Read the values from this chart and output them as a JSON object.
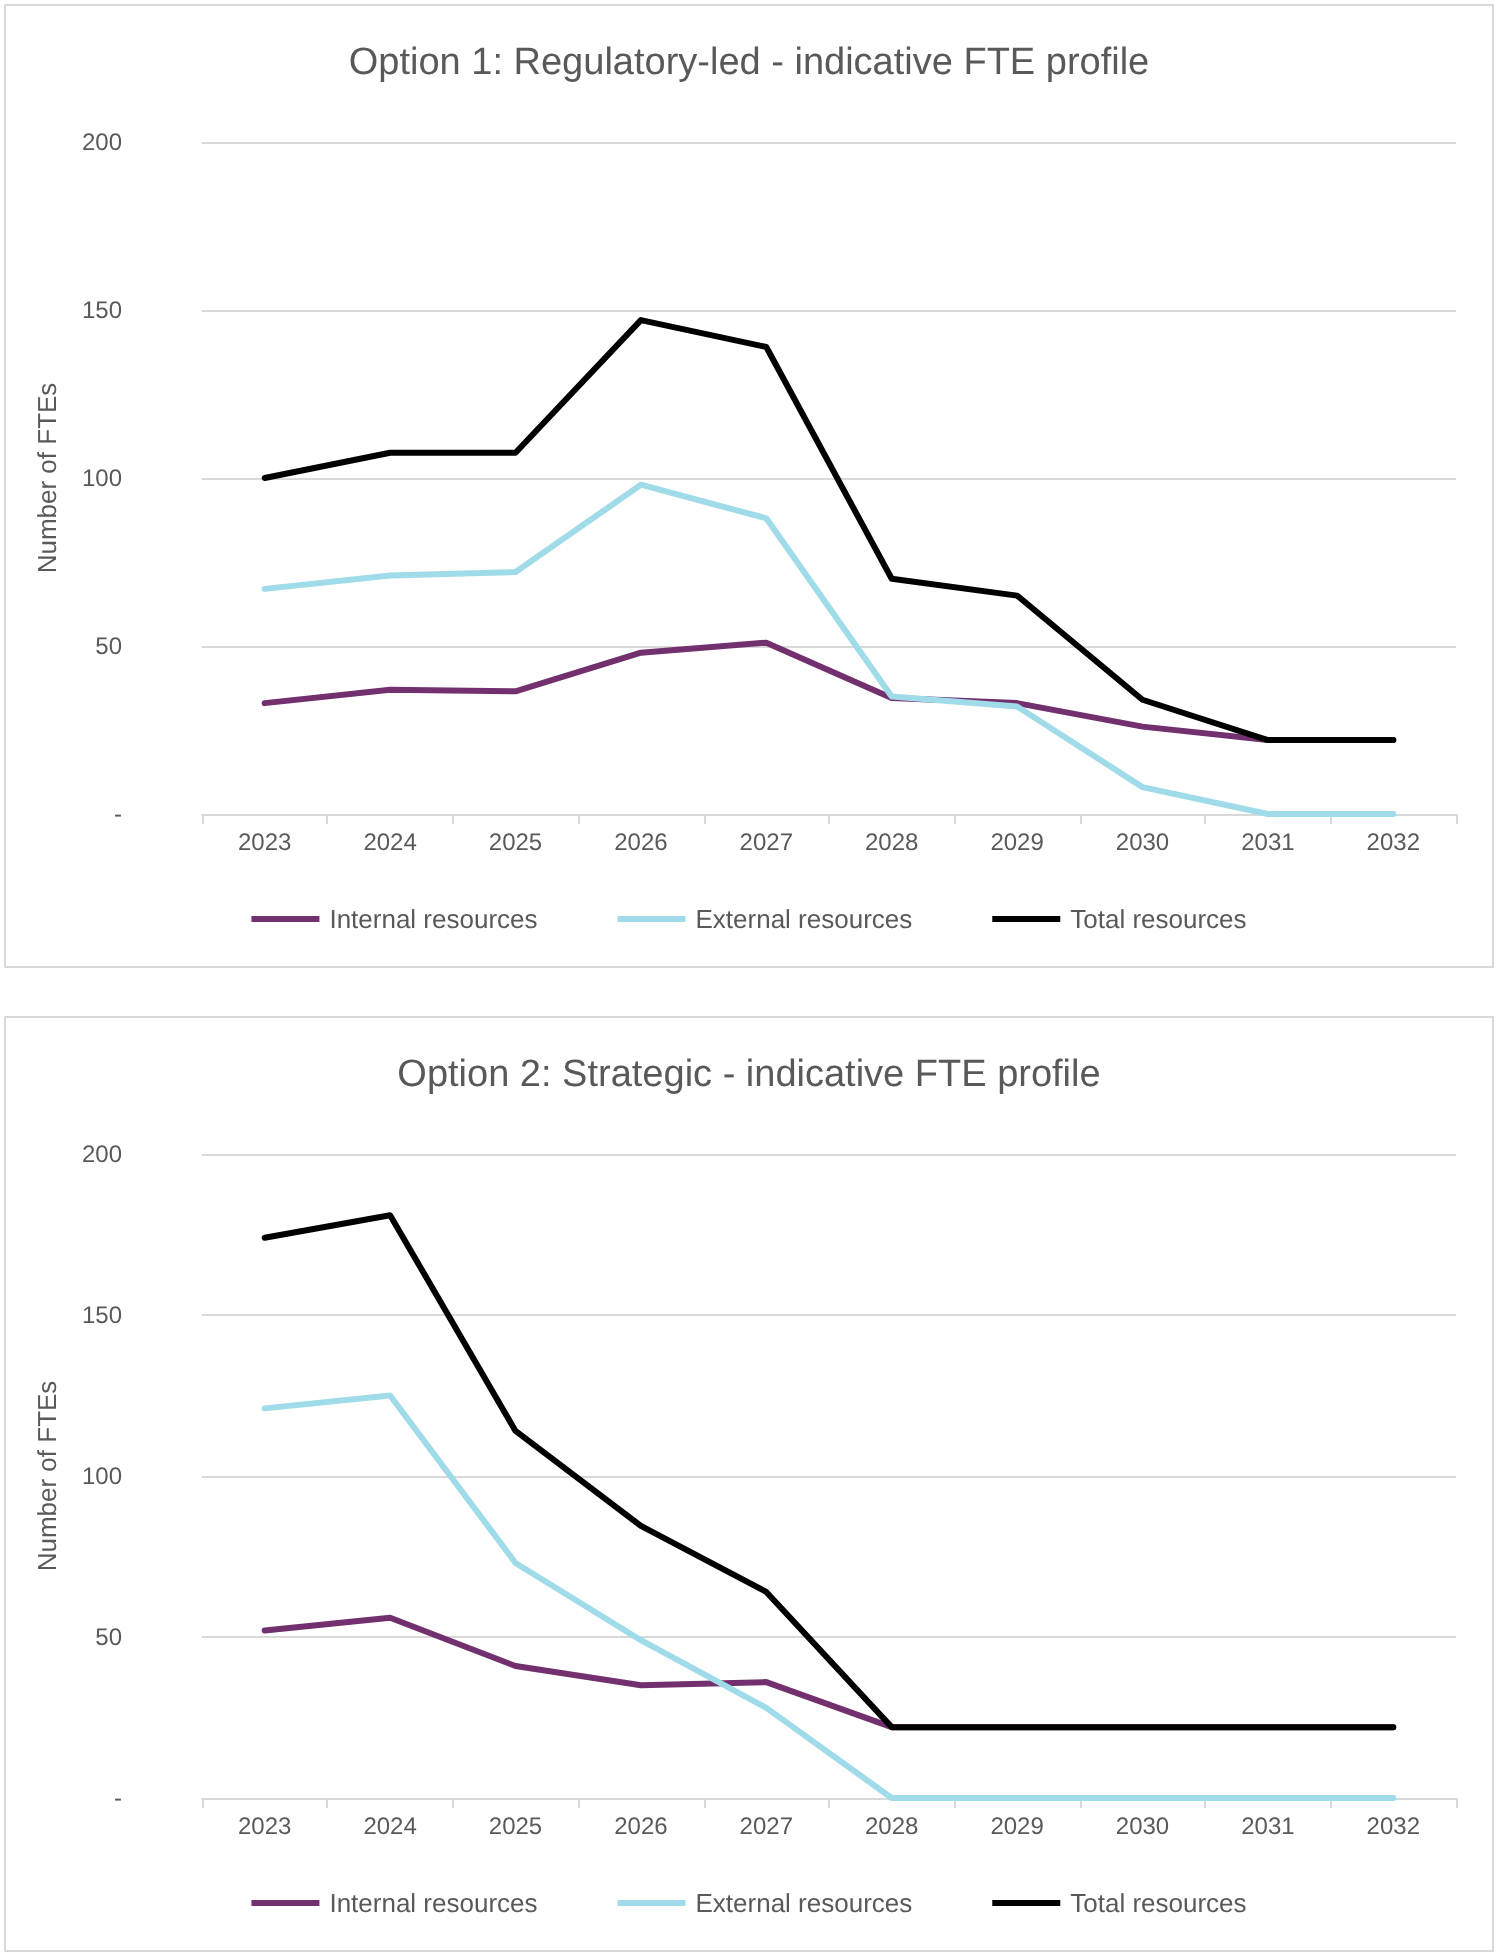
{
  "chart_data": [
    {
      "type": "line",
      "title": "Option 1: Regulatory-led - indicative FTE profile",
      "ylabel": "Number of FTEs",
      "categories": [
        "2023",
        "2024",
        "2025",
        "2026",
        "2027",
        "2028",
        "2029",
        "2030",
        "2031",
        "2032"
      ],
      "series": [
        {
          "name": "Internal resources",
          "color": "#72306f",
          "values": [
            33,
            37,
            36.5,
            48,
            51,
            34.5,
            33,
            26,
            22,
            22
          ]
        },
        {
          "name": "External resources",
          "color": "#9fdbe8",
          "values": [
            67,
            71,
            72,
            98,
            88,
            35,
            32,
            8,
            0,
            0
          ]
        },
        {
          "name": "Total resources",
          "color": "#000000",
          "values": [
            100,
            107.5,
            107.5,
            147,
            139,
            70,
            65,
            34,
            22,
            22
          ]
        }
      ],
      "ylim": [
        0,
        200
      ],
      "yticks": [
        {
          "value": 0,
          "label": "-"
        },
        50,
        100,
        150,
        200
      ],
      "grid": "y",
      "legend": "bottom",
      "marker": "none",
      "line_style": "solid"
    },
    {
      "type": "line",
      "title": "Option 2: Strategic - indicative FTE profile",
      "ylabel": "Number of FTEs",
      "categories": [
        "2023",
        "2024",
        "2025",
        "2026",
        "2027",
        "2028",
        "2029",
        "2030",
        "2031",
        "2032"
      ],
      "series": [
        {
          "name": "Internal resources",
          "color": "#72306f",
          "values": [
            52,
            56,
            41,
            35,
            36,
            22,
            22,
            22,
            22,
            22
          ]
        },
        {
          "name": "External resources",
          "color": "#9fdbe8",
          "values": [
            121,
            125,
            73,
            49,
            28,
            0,
            0,
            0,
            0,
            0
          ]
        },
        {
          "name": "Total resources",
          "color": "#000000",
          "values": [
            174,
            181,
            114,
            84.5,
            64,
            22,
            22,
            22,
            22,
            22
          ]
        }
      ],
      "ylim": [
        0,
        200
      ],
      "yticks": [
        {
          "value": 0,
          "label": "-"
        },
        50,
        100,
        150,
        200
      ],
      "grid": "y",
      "legend": "bottom",
      "marker": "none",
      "line_style": "solid"
    }
  ]
}
